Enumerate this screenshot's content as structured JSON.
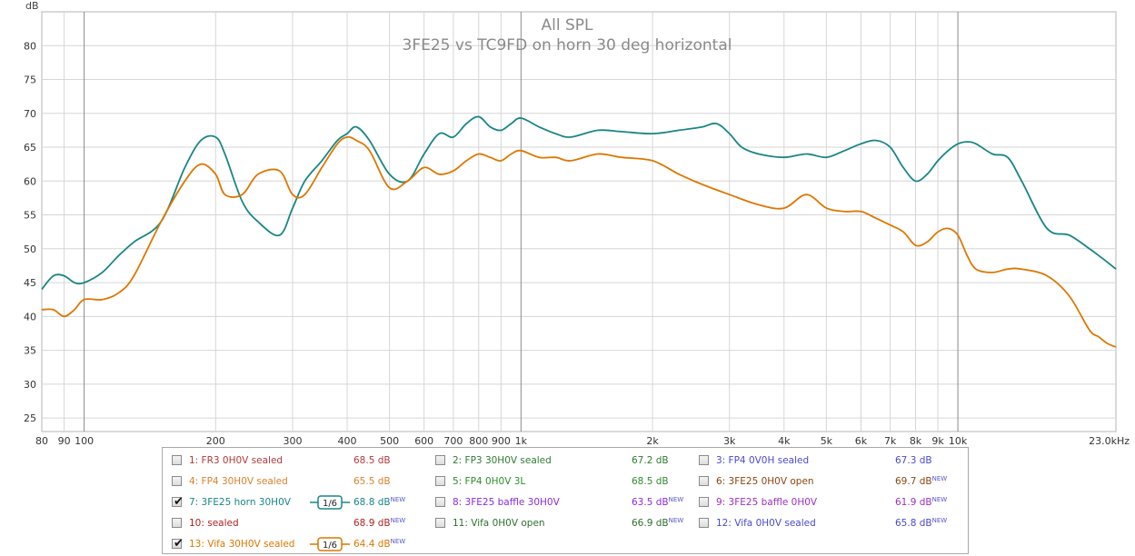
{
  "chart_data": {
    "type": "line",
    "title": "All SPL",
    "subtitle": "3FE25 vs TC9FD on horn 30 deg horizontal",
    "ylabel": "dB",
    "xscale": "log",
    "xlim": [
      80,
      23000
    ],
    "ylim": [
      23,
      85
    ],
    "yticks": [
      25,
      30,
      35,
      40,
      45,
      50,
      55,
      60,
      65,
      70,
      75,
      80
    ],
    "xticks": [
      {
        "v": 80,
        "label": "80"
      },
      {
        "v": 90,
        "label": "90"
      },
      {
        "v": 100,
        "label": "100"
      },
      {
        "v": 200,
        "label": "200"
      },
      {
        "v": 300,
        "label": "300"
      },
      {
        "v": 400,
        "label": "400"
      },
      {
        "v": 500,
        "label": "500"
      },
      {
        "v": 600,
        "label": "600"
      },
      {
        "v": 700,
        "label": "700"
      },
      {
        "v": 800,
        "label": "800"
      },
      {
        "v": 900,
        "label": "900"
      },
      {
        "v": 1000,
        "label": "1k"
      },
      {
        "v": 2000,
        "label": "2k"
      },
      {
        "v": 3000,
        "label": "3k"
      },
      {
        "v": 4000,
        "label": "4k"
      },
      {
        "v": 5000,
        "label": "5k"
      },
      {
        "v": 6000,
        "label": "6k"
      },
      {
        "v": 7000,
        "label": "7k"
      },
      {
        "v": 8000,
        "label": "8k"
      },
      {
        "v": 9000,
        "label": "9k"
      },
      {
        "v": 10000,
        "label": "10k"
      },
      {
        "v": 23000,
        "label": "23.0kHz"
      }
    ],
    "grid": true,
    "series": [
      {
        "color": "#1a8585",
        "x": [
          80,
          85,
          90,
          95,
          100,
          110,
          120,
          130,
          150,
          170,
          185,
          200,
          210,
          230,
          250,
          280,
          300,
          320,
          350,
          380,
          400,
          420,
          450,
          500,
          550,
          600,
          650,
          700,
          750,
          800,
          850,
          900,
          950,
          1000,
          1100,
          1200,
          1300,
          1500,
          1700,
          2000,
          2300,
          2600,
          2800,
          3000,
          3200,
          3500,
          4000,
          4500,
          5000,
          5500,
          6000,
          6500,
          7000,
          7500,
          8000,
          8500,
          9000,
          9500,
          10000,
          10500,
          11000,
          12000,
          13000,
          14000,
          16000,
          18000,
          20000,
          21000,
          22000,
          23000
        ],
        "y": [
          44,
          46,
          46,
          45,
          45,
          46.5,
          49,
          51,
          54,
          62,
          66,
          66.5,
          64,
          57,
          54,
          52,
          56,
          60,
          63,
          66,
          67,
          68,
          66,
          61,
          60,
          64,
          67,
          66.5,
          68.5,
          69.5,
          68,
          67.5,
          68.5,
          69.3,
          68,
          67,
          66.5,
          67.5,
          67.3,
          67,
          67.5,
          68,
          68.5,
          67,
          65,
          64,
          63.5,
          64,
          63.5,
          64.5,
          65.5,
          66,
          65,
          62,
          60,
          61,
          63,
          64.5,
          65.5,
          65.8,
          65.5,
          64,
          63.5,
          60,
          53,
          52,
          50,
          49,
          48,
          47
        ]
      },
      {
        "color": "#dd7700",
        "x": [
          80,
          85,
          90,
          95,
          100,
          110,
          120,
          130,
          150,
          170,
          185,
          200,
          210,
          230,
          250,
          280,
          300,
          320,
          350,
          380,
          400,
          420,
          450,
          500,
          550,
          600,
          650,
          700,
          750,
          800,
          850,
          900,
          950,
          1000,
          1100,
          1200,
          1300,
          1500,
          1700,
          2000,
          2300,
          2600,
          3000,
          3500,
          4000,
          4500,
          5000,
          5500,
          6000,
          6500,
          7000,
          7500,
          8000,
          8500,
          9000,
          9500,
          10000,
          10500,
          11000,
          12000,
          13000,
          14000,
          16000,
          18000,
          20000,
          21000,
          22000,
          23000
        ],
        "y": [
          41,
          41,
          40,
          41,
          42.5,
          42.5,
          43.5,
          46,
          54,
          60,
          62.5,
          61,
          58,
          58,
          61,
          61.5,
          58,
          58,
          62,
          65.5,
          66.5,
          66,
          64.5,
          59,
          60,
          62,
          61,
          61.5,
          63,
          64,
          63.5,
          63,
          64,
          64.5,
          63.5,
          63.5,
          63,
          64,
          63.5,
          63,
          61,
          59.5,
          58,
          56.5,
          56,
          58,
          56,
          55.5,
          55.5,
          54.5,
          53.5,
          52.5,
          50.5,
          51,
          52.5,
          53,
          52,
          49,
          47,
          46.5,
          47,
          47,
          46,
          43,
          38,
          37,
          36,
          35.5
        ]
      }
    ]
  },
  "legend": {
    "columns": [
      [
        {
          "name": "1: FR3 0H0V sealed",
          "value": "68.5 dB",
          "new": "",
          "checked": false,
          "color": "#b23a3a",
          "smoothing": ""
        },
        {
          "name": "4: FP4 30H0V sealed",
          "value": "65.5 dB",
          "new": "",
          "checked": false,
          "color": "#d9822b",
          "smoothing": ""
        },
        {
          "name": "7: 3FE25 horn 30H0V",
          "value": "68.8 dB",
          "new": "NEW",
          "checked": true,
          "color": "#1a8585",
          "smoothing": "1/6"
        },
        {
          "name": "10: sealed",
          "value": "68.9 dB",
          "new": "NEW",
          "checked": false,
          "color": "#b22222",
          "smoothing": ""
        },
        {
          "name": "13: Vifa 30H0V sealed",
          "value": "64.4 dB",
          "new": "NEW",
          "checked": true,
          "color": "#dd7700",
          "smoothing": "1/6"
        }
      ],
      [
        {
          "name": "2: FP3 30H0V sealed",
          "value": "67.2 dB",
          "new": "",
          "checked": false,
          "color": "#2e7d32",
          "smoothing": ""
        },
        {
          "name": "5: FP4 0H0V 3L",
          "value": "68.5 dB",
          "new": "",
          "checked": false,
          "color": "#2e8b2e",
          "smoothing": ""
        },
        {
          "name": "8: 3FE25 baffle 30H0V",
          "value": "63.5 dB",
          "new": "NEW",
          "checked": false,
          "color": "#8a2be2",
          "smoothing": ""
        },
        {
          "name": "11: Vifa 0H0V open",
          "value": "66.9 dB",
          "new": "NEW",
          "checked": false,
          "color": "#2f6f2f",
          "smoothing": ""
        }
      ],
      [
        {
          "name": "3: FP4 0V0H sealed",
          "value": "67.3 dB",
          "new": "",
          "checked": false,
          "color": "#4a4ad0",
          "smoothing": ""
        },
        {
          "name": "6: 3FE25 0H0V open",
          "value": "69.7 dB",
          "new": "NEW",
          "checked": false,
          "color": "#8b4513",
          "smoothing": ""
        },
        {
          "name": "9: 3FE25 baffle 0H0V",
          "value": "61.9 dB",
          "new": "NEW",
          "checked": false,
          "color": "#9b30c0",
          "smoothing": ""
        },
        {
          "name": "12: Vifa 0H0V sealed",
          "value": "65.8 dB",
          "new": "NEW",
          "checked": false,
          "color": "#4a4ad0",
          "smoothing": ""
        }
      ]
    ]
  }
}
